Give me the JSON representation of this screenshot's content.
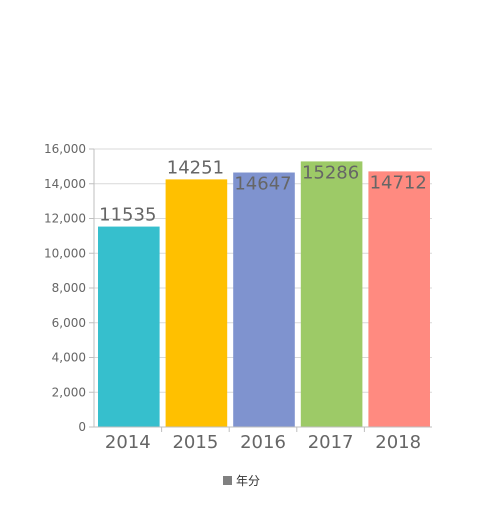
{
  "chart_data": {
    "type": "bar",
    "categories": [
      "2014",
      "2015",
      "2016",
      "2017",
      "2018"
    ],
    "values": [
      11535,
      14251,
      14647,
      15286,
      14712
    ],
    "colors": [
      "#36bfcd",
      "#ffc000",
      "#7f93cf",
      "#9dca67",
      "#ff8a80"
    ],
    "ylim": [
      0,
      16000
    ],
    "yticks": [
      "0",
      "2,000",
      "4,000",
      "6,000",
      "8,000",
      "10,000",
      "12,000",
      "14,000",
      "16,000"
    ],
    "legend": {
      "label": "年分",
      "color": "#808080",
      "placement": "bottom-center"
    },
    "grid": true
  }
}
